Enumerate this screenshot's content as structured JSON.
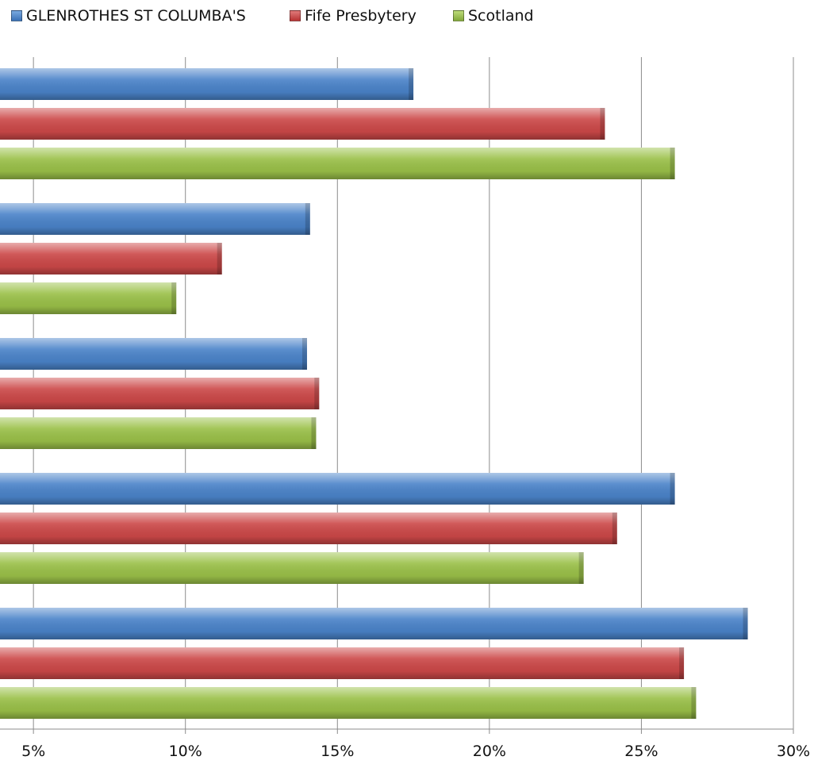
{
  "legend": {
    "items": [
      {
        "label": "GLENROTHES ST COLUMBA'S",
        "color": "#4a83c9"
      },
      {
        "label": "Fife Presbytery",
        "color": "#cc4848"
      },
      {
        "label": "Scotland",
        "color": "#9ac048"
      }
    ]
  },
  "chart_data": {
    "type": "bar",
    "orientation": "horizontal",
    "series": [
      {
        "name": "GLENROTHES ST COLUMBA'S",
        "color": "#4a83c9",
        "values": [
          17.5,
          14.1,
          14.0,
          26.1,
          28.5
        ]
      },
      {
        "name": "Fife Presbytery",
        "color": "#cc4848",
        "values": [
          23.8,
          11.2,
          14.4,
          24.2,
          26.4
        ]
      },
      {
        "name": "Scotland",
        "color": "#9ac048",
        "values": [
          26.1,
          9.7,
          14.3,
          23.1,
          26.8
        ]
      }
    ],
    "x_ticks": [
      "5%",
      "10%",
      "15%",
      "20%",
      "25%",
      "30%"
    ],
    "x_tick_values": [
      5,
      10,
      15,
      20,
      25,
      30
    ],
    "xlim": [
      3.9,
      30
    ],
    "grid": true,
    "legend_position": "top"
  }
}
